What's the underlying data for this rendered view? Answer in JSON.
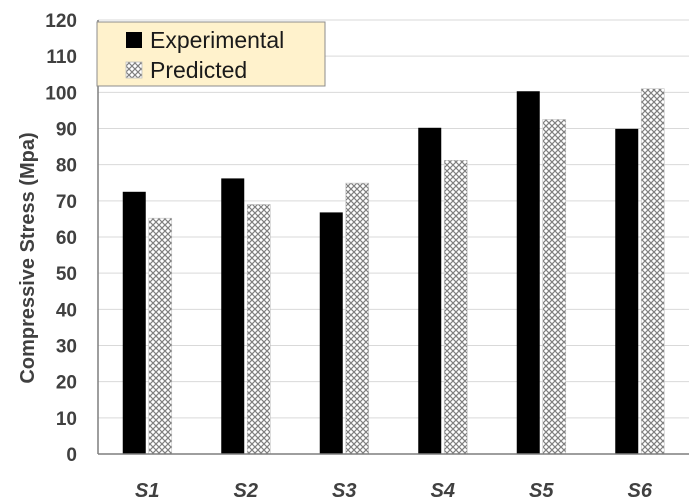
{
  "chart_data": {
    "type": "bar",
    "categories": [
      "S1",
      "S2",
      "S3",
      "S4",
      "S5",
      "S6"
    ],
    "series": [
      {
        "name": "Experimental",
        "values": [
          72.5,
          76.2,
          66.8,
          90.2,
          100.3,
          89.9
        ],
        "color": "#000000",
        "pattern": "solid"
      },
      {
        "name": "Predicted",
        "values": [
          65.2,
          69.0,
          74.9,
          81.2,
          92.5,
          101.0
        ],
        "color": "#808080",
        "pattern": "crosshatch"
      }
    ],
    "ylabel": "Compressive Stress (Mpa)",
    "xlabel": "",
    "ylim": [
      0,
      120
    ],
    "yticks": [
      "0",
      "10",
      "20",
      "30",
      "40",
      "50",
      "60",
      "70",
      "80",
      "90",
      "100",
      "110",
      "120"
    ],
    "grid": true,
    "legend_position": "top-left",
    "legend_background": "#fff2cc"
  }
}
